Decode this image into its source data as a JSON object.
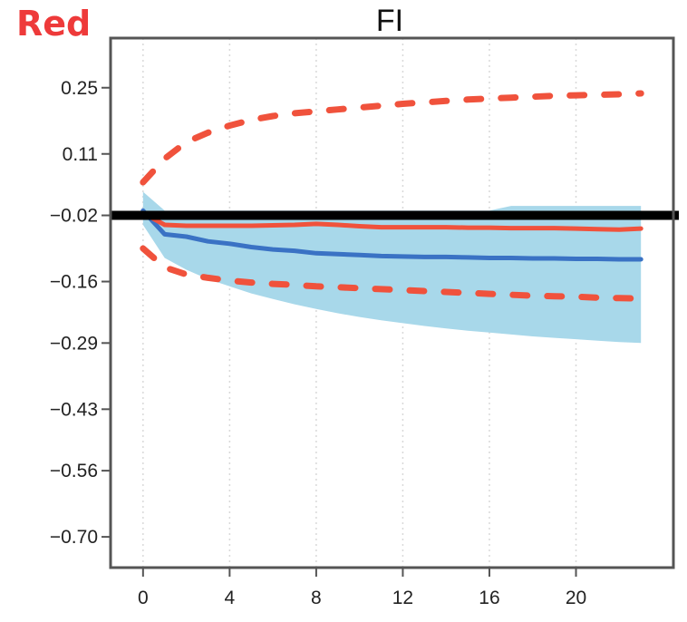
{
  "corner_label": "Red",
  "chart_data": {
    "type": "line",
    "title": "FI",
    "xlabel": "",
    "ylabel": "",
    "xlim": [
      -1.5,
      24.5
    ],
    "ylim": [
      -0.765,
      0.355
    ],
    "x_ticks": [
      0,
      4,
      8,
      12,
      16,
      20
    ],
    "x_tick_labels": [
      "0",
      "4",
      "8",
      "12",
      "16",
      "20"
    ],
    "y_ticks": [
      0.25,
      0.11,
      -0.02,
      -0.16,
      -0.29,
      -0.43,
      -0.56,
      -0.7
    ],
    "y_tick_labels": [
      "0.25",
      "0.11",
      "−0.02",
      "−0.16",
      "−0.29",
      "−0.43",
      "−0.56",
      "−0.70"
    ],
    "grid": "vertical dotted",
    "reference_line": -0.02,
    "colors": {
      "band": "#a8d8ea",
      "blue_line": "#3a72c4",
      "red_line": "#f0523c",
      "red_dashed": "#f0523c",
      "zero_line": "#000000",
      "frame": "#555555"
    },
    "x": [
      0,
      1,
      2,
      3,
      4,
      5,
      6,
      7,
      8,
      9,
      10,
      11,
      12,
      13,
      14,
      15,
      16,
      17,
      18,
      19,
      20,
      21,
      22,
      23
    ],
    "band": {
      "upper": [
        0.03,
        -0.01,
        -0.01,
        -0.01,
        -0.01,
        -0.01,
        -0.01,
        -0.01,
        -0.01,
        -0.01,
        -0.01,
        -0.01,
        -0.01,
        -0.01,
        -0.01,
        -0.01,
        -0.01,
        0.0,
        0.0,
        0.0,
        0.0,
        0.0,
        0.0,
        0.0
      ],
      "lower": [
        -0.04,
        -0.11,
        -0.135,
        -0.155,
        -0.17,
        -0.185,
        -0.197,
        -0.208,
        -0.218,
        -0.227,
        -0.235,
        -0.242,
        -0.248,
        -0.254,
        -0.259,
        -0.264,
        -0.268,
        -0.272,
        -0.276,
        -0.279,
        -0.282,
        -0.285,
        -0.288,
        -0.29
      ]
    },
    "series": [
      {
        "style": "solid",
        "color": "#3a72c4",
        "values": [
          -0.01,
          -0.06,
          -0.065,
          -0.075,
          -0.08,
          -0.087,
          -0.092,
          -0.095,
          -0.1,
          -0.102,
          -0.104,
          -0.106,
          -0.107,
          -0.108,
          -0.108,
          -0.109,
          -0.11,
          -0.11,
          -0.111,
          -0.111,
          -0.112,
          -0.112,
          -0.113,
          -0.113
        ]
      },
      {
        "style": "solid",
        "color": "#f0523c",
        "values": [
          -0.015,
          -0.04,
          -0.042,
          -0.042,
          -0.042,
          -0.042,
          -0.041,
          -0.04,
          -0.038,
          -0.04,
          -0.043,
          -0.045,
          -0.045,
          -0.045,
          -0.045,
          -0.046,
          -0.046,
          -0.047,
          -0.047,
          -0.047,
          -0.048,
          -0.049,
          -0.05,
          -0.048
        ]
      },
      {
        "style": "dashed",
        "color": "#f0523c",
        "values": [
          0.05,
          0.1,
          0.135,
          0.155,
          0.17,
          0.182,
          0.19,
          0.196,
          0.2,
          0.204,
          0.208,
          0.212,
          0.216,
          0.219,
          0.222,
          0.225,
          0.227,
          0.229,
          0.231,
          0.233,
          0.234,
          0.235,
          0.236,
          0.238
        ]
      },
      {
        "style": "dashed",
        "color": "#f0523c",
        "values": [
          -0.09,
          -0.13,
          -0.145,
          -0.152,
          -0.158,
          -0.162,
          -0.165,
          -0.167,
          -0.17,
          -0.172,
          -0.174,
          -0.176,
          -0.178,
          -0.18,
          -0.182,
          -0.184,
          -0.186,
          -0.188,
          -0.19,
          -0.191,
          -0.192,
          -0.194,
          -0.195,
          -0.196
        ]
      }
    ]
  }
}
